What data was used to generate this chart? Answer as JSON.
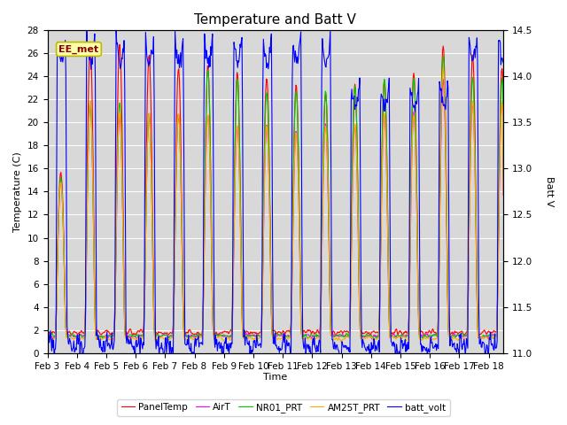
{
  "title": "Temperature and Batt V",
  "xlabel": "Time",
  "ylabel_left": "Temperature (C)",
  "ylabel_right": "Batt V",
  "annotation": "EE_met",
  "ylim_left": [
    0,
    28
  ],
  "ylim_right": [
    11.0,
    14.5
  ],
  "xtick_labels": [
    "Feb 3",
    "Feb 4",
    "Feb 5",
    "Feb 6",
    "Feb 7",
    "Feb 8",
    "Feb 9",
    "Feb 10",
    "Feb 11",
    "Feb 12",
    "Feb 13",
    "Feb 14",
    "Feb 15",
    "Feb 16",
    "Feb 17",
    "Feb 18"
  ],
  "series": {
    "PanelTemp": {
      "color": "#ff0000",
      "lw": 0.8
    },
    "AirT": {
      "color": "#ff00ff",
      "lw": 0.8
    },
    "NR01_PRT": {
      "color": "#00cc00",
      "lw": 0.8
    },
    "AM25T_PRT": {
      "color": "#ffaa00",
      "lw": 0.8
    },
    "batt_volt": {
      "color": "#0000ff",
      "lw": 0.8
    }
  },
  "background_color": "#d8d8d8",
  "figure_color": "#ffffff",
  "title_fontsize": 11,
  "axis_fontsize": 8,
  "tick_fontsize": 7.5
}
